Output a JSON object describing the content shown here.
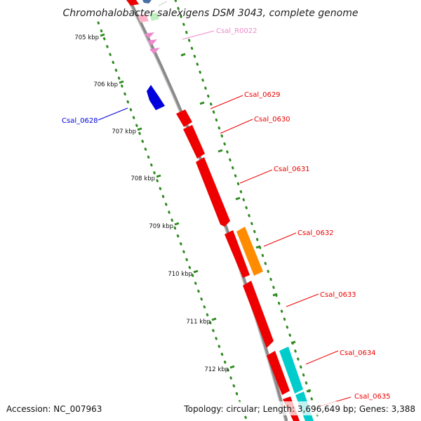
{
  "header": {
    "title": "Chromohalobacter salexigens DSM 3043, complete genome"
  },
  "footer": {
    "accession": "Accession: NC_007963",
    "topology": "Topology: circular; Length: 3,696,649 bp; Genes: 3,388"
  },
  "colors": {
    "backbone": "#8a8a8a",
    "tick_dots": "#2e8b1f",
    "gene_red": "#ee0000",
    "gene_orange": "#ff8c00",
    "gene_blue": "#0000dd",
    "gene_cyan": "#00cccc",
    "gene_pink": "#ee88cc",
    "gene_green_light": "#bfeebf",
    "gene_steel": "#4a6fa5"
  },
  "ticks": [
    {
      "label": "705 kbp"
    },
    {
      "label": "706 kbp"
    },
    {
      "label": "707 kbp"
    },
    {
      "label": "708 kbp"
    },
    {
      "label": "709 kbp"
    },
    {
      "label": "710 kbp"
    },
    {
      "label": "711 kbp"
    },
    {
      "label": "712 kbp"
    }
  ],
  "genes": [
    {
      "id": "Csal_R0022",
      "label": "Csal_R0022",
      "color": "#ee88cc"
    },
    {
      "id": "Csal_0628",
      "label": "Csal_0628",
      "color": "#0000dd"
    },
    {
      "id": "Csal_0629",
      "label": "Csal_0629",
      "color": "#ee0000"
    },
    {
      "id": "Csal_0630",
      "label": "Csal_0630",
      "color": "#ee0000"
    },
    {
      "id": "Csal_0631",
      "label": "Csal_0631",
      "color": "#ee0000"
    },
    {
      "id": "Csal_0632",
      "label": "Csal_0632",
      "color": "#ff8c00"
    },
    {
      "id": "Csal_0633",
      "label": "Csal_0633",
      "color": "#ee0000"
    },
    {
      "id": "Csal_0634",
      "label": "Csal_0634",
      "color": "#ee0000"
    },
    {
      "id": "Csal_0635",
      "label": "Csal_0635",
      "color": "#ee0000"
    }
  ]
}
